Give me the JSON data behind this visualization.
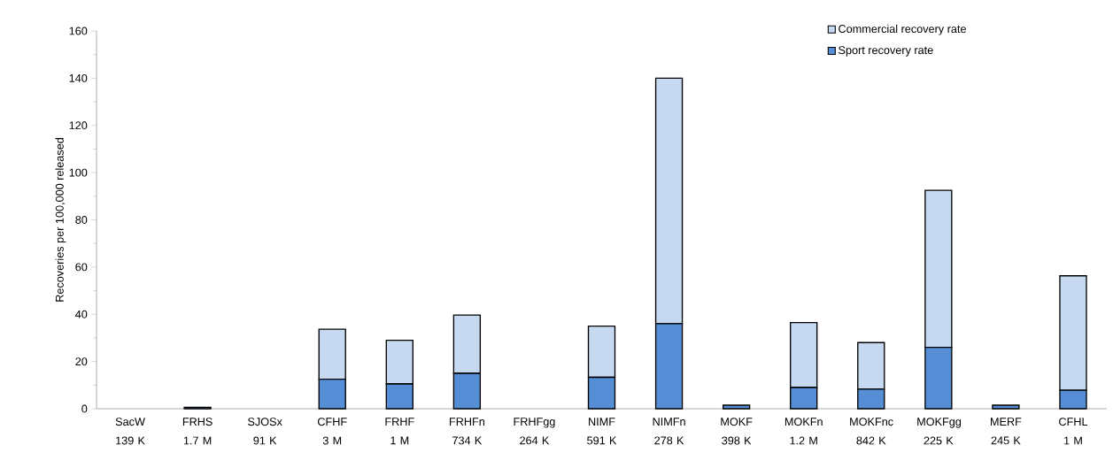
{
  "chart_data": {
    "type": "bar",
    "stacked": true,
    "ylabel": "Recoveries per 100,000 released",
    "categories": [
      "SacW 139 K",
      "FRHS 1.7 M",
      "SJOSx 91 K",
      "CFHF 3 M",
      "FRHF 1 M",
      "FRHFn 734 K",
      "FRHFgg 264 K",
      "NIMF 591 K",
      "NIMFn 278 K",
      "MOKF 398 K",
      "MOKFn 1.2 M",
      "MOKFnc 842 K",
      "MOKFgg 225 K",
      "MERF 245 K",
      "CFHL 1 M"
    ],
    "series": [
      {
        "name": "Sport recovery rate",
        "color": "#558ed5",
        "values": [
          0,
          0.6,
          0,
          12.5,
          10.5,
          15,
          0,
          13.3,
          36,
          1.5,
          9,
          8.3,
          26,
          1.5,
          7.8
        ]
      },
      {
        "name": "Commercial recovery rate",
        "color": "#c6d9f1",
        "values": [
          0,
          0,
          0,
          21.2,
          18.5,
          24.7,
          0,
          21.7,
          104,
          null,
          27.5,
          19.7,
          66.5,
          null,
          48.5
        ]
      }
    ],
    "ylim": [
      0,
      160
    ],
    "yticks": [
      0,
      20,
      40,
      60,
      80,
      100,
      120,
      140,
      160
    ],
    "legend": "top right",
    "grid": false
  }
}
